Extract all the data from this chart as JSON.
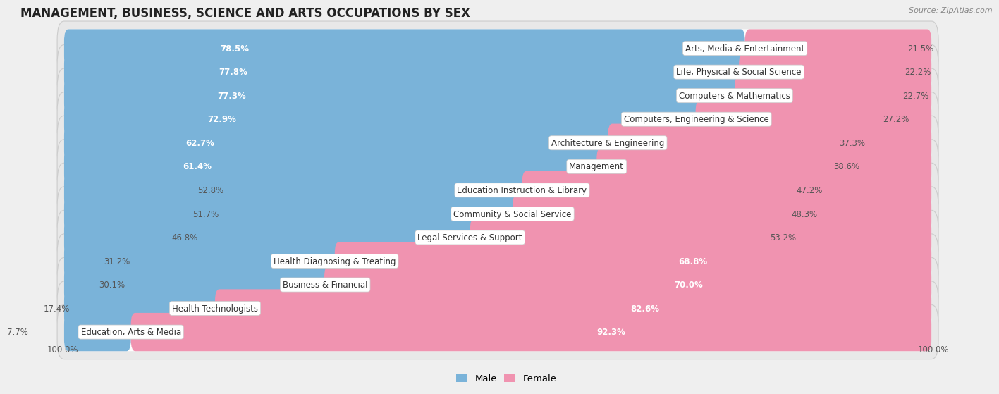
{
  "title": "MANAGEMENT, BUSINESS, SCIENCE AND ARTS OCCUPATIONS BY SEX",
  "source": "Source: ZipAtlas.com",
  "categories": [
    "Arts, Media & Entertainment",
    "Life, Physical & Social Science",
    "Computers & Mathematics",
    "Computers, Engineering & Science",
    "Architecture & Engineering",
    "Management",
    "Education Instruction & Library",
    "Community & Social Service",
    "Legal Services & Support",
    "Health Diagnosing & Treating",
    "Business & Financial",
    "Health Technologists",
    "Education, Arts & Media"
  ],
  "male_pct": [
    78.5,
    77.8,
    77.3,
    72.9,
    62.7,
    61.4,
    52.8,
    51.7,
    46.8,
    31.2,
    30.1,
    17.4,
    7.7
  ],
  "female_pct": [
    21.5,
    22.2,
    22.7,
    27.2,
    37.3,
    38.6,
    47.2,
    48.3,
    53.2,
    68.8,
    70.0,
    82.6,
    92.3
  ],
  "male_color": "#7ab3d9",
  "female_color": "#f093b0",
  "bg_color": "#efefef",
  "bar_bg_color": "#ffffff",
  "row_bg_color": "#e8e8e8",
  "title_fontsize": 12,
  "label_fontsize": 8.5,
  "pct_fontsize": 8.5,
  "bar_height": 0.62,
  "total_width": 100.0
}
